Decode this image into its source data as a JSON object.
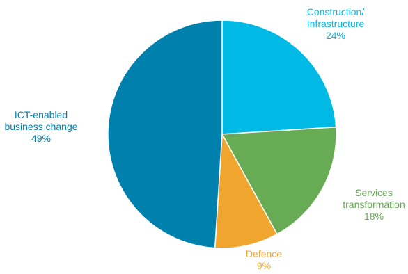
{
  "chart_data": {
    "type": "pie",
    "title": "",
    "slices": [
      {
        "label_lines": [
          "Construction/",
          "Infrastructure"
        ],
        "value_label": "24%",
        "value": 24,
        "color": "#00B9E4"
      },
      {
        "label_lines": [
          "Services",
          "transformation"
        ],
        "value_label": "18%",
        "value": 18,
        "color": "#67AB54"
      },
      {
        "label_lines": [
          "Defence"
        ],
        "value_label": "9%",
        "value": 9,
        "color": "#F0A62E"
      },
      {
        "label_lines": [
          "ICT-enabled",
          "business change"
        ],
        "value_label": "49%",
        "value": 49,
        "color": "#0080AC"
      }
    ],
    "start_angle_deg": 0,
    "direction": "clockwise",
    "slice_border_color": "#ffffff"
  }
}
